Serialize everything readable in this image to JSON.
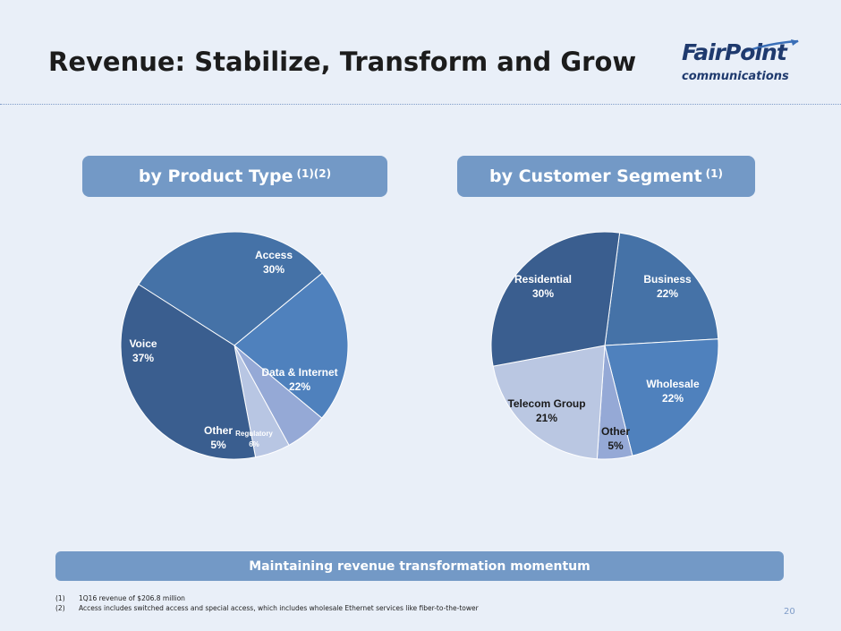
{
  "slide": {
    "title": "Revenue: Stabilize, Transform and Grow",
    "page_number": "20",
    "banner": "Maintaining revenue transformation momentum"
  },
  "logo": {
    "name": "FairPoint",
    "tagline": "communications",
    "colors": {
      "primary": "#1f3a6e"
    }
  },
  "headers": {
    "product": {
      "label": "by Product Type",
      "sup": "(1)(2)"
    },
    "segment": {
      "label": "by Customer Segment",
      "sup": "(1)"
    }
  },
  "footnotes": [
    {
      "num": "(1)",
      "text": "1Q16 revenue of $206.8 million"
    },
    {
      "num": "(2)",
      "text": "Access includes switched access and special access, which includes wholesale Ethernet services like fiber-to-the-tower"
    }
  ],
  "chart_data": [
    {
      "type": "pie",
      "title": "by Product Type (1)(2)",
      "slices": [
        {
          "label": "Access",
          "value": 30,
          "pct": "30%",
          "color": "#4572a7"
        },
        {
          "label": "Data & Internet",
          "value": 22,
          "pct": "22%",
          "color": "#4f81bd"
        },
        {
          "label": "Regulatory",
          "value": 6,
          "pct": "6%",
          "color": "#95a9d6"
        },
        {
          "label": "Other",
          "value": 5,
          "pct": "5%",
          "color": "#b8c6e3"
        },
        {
          "label": "Voice",
          "value": 37,
          "pct": "37%",
          "color": "#3a5e8f"
        }
      ]
    },
    {
      "type": "pie",
      "title": "by Customer Segment (1)",
      "slices": [
        {
          "label": "Business",
          "value": 22,
          "pct": "22%",
          "color": "#4572a7"
        },
        {
          "label": "Wholesale",
          "value": 22,
          "pct": "22%",
          "color": "#4f81bd"
        },
        {
          "label": "Other",
          "value": 5,
          "pct": "5%",
          "color": "#95a9d6"
        },
        {
          "label": "Telecom Group",
          "value": 21,
          "pct": "21%",
          "color": "#bac7e2"
        },
        {
          "label": "Residential",
          "value": 30,
          "pct": "30%",
          "color": "#3a5e8f"
        }
      ]
    }
  ]
}
